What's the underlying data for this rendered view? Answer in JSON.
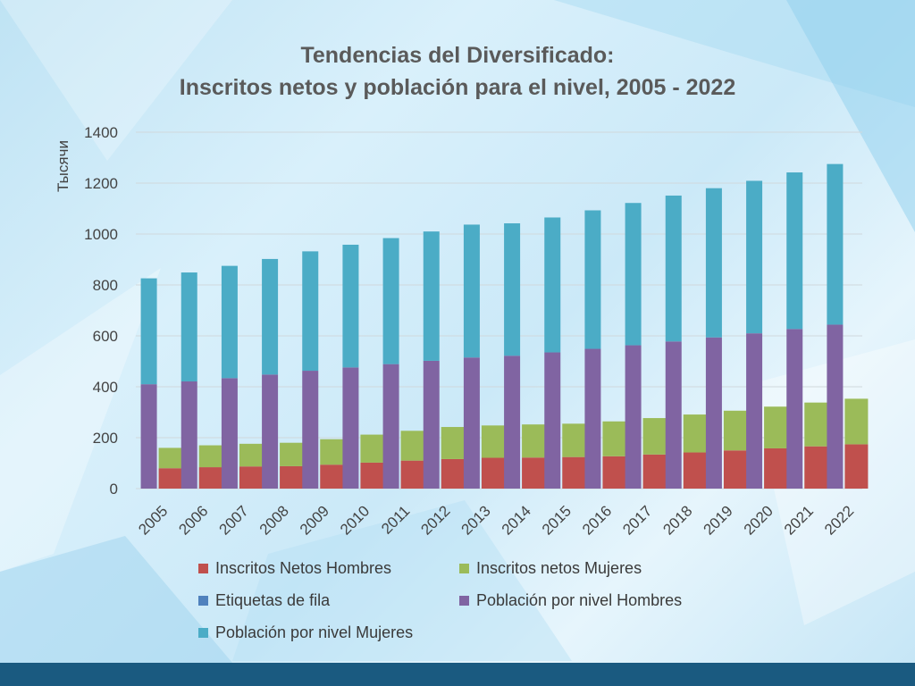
{
  "chart_data": {
    "type": "bar",
    "stacked": true,
    "title_lines": [
      "Tendencias del Diversificado:",
      "Inscritos netos y población para el nivel, 2005 - 2022"
    ],
    "ylabel": "Тысячи",
    "ylim": [
      0,
      1400
    ],
    "yticks": [
      0,
      200,
      400,
      600,
      800,
      1000,
      1200,
      1400
    ],
    "grid": true,
    "legend_position": "bottom",
    "categories": [
      "2005",
      "2006",
      "2007",
      "2008",
      "2009",
      "2010",
      "2011",
      "2012",
      "2013",
      "2014",
      "2015",
      "2016",
      "2017",
      "2018",
      "2019",
      "2020",
      "2021",
      "2022"
    ],
    "stack_groups": [
      {
        "group": "enrolled",
        "series": [
          {
            "name": "Inscritos Netos Hombres",
            "color": "#c0504d",
            "values": [
              80,
              84,
              87,
              88,
              94,
              102,
              110,
              116,
              121,
              122,
              124,
              127,
              134,
              142,
              150,
              158,
              166,
              174
            ]
          },
          {
            "name": "Inscritos netos Mujeres",
            "color": "#9bbb59",
            "values": [
              80,
              86,
              89,
              92,
              100,
              110,
              117,
              126,
              127,
              130,
              131,
              137,
              143,
              149,
              156,
              164,
              172,
              179
            ]
          }
        ]
      },
      {
        "group": "population",
        "series": [
          {
            "name": "Población por nivel Hombres",
            "color": "#8064a2",
            "values": [
              410,
              421,
              434,
              448,
              463,
              476,
              489,
              502,
              515,
              522,
              535,
              549,
              563,
              578,
              594,
              610,
              627,
              644
            ]
          },
          {
            "name": "Población por nivel Mujeres",
            "color": "#4bacc6",
            "values": [
              416,
              428,
              441,
              454,
              469,
              482,
              495,
              508,
              522,
              520,
              530,
              544,
              559,
              573,
              586,
              599,
              615,
              631
            ]
          }
        ]
      }
    ],
    "legend": [
      {
        "name": "Inscritos Netos Hombres",
        "color": "#c0504d"
      },
      {
        "name": "Inscritos netos Mujeres",
        "color": "#9bbb59"
      },
      {
        "name": "Etiquetas de fila",
        "color": "#4f81bd"
      },
      {
        "name": "Población por nivel Hombres",
        "color": "#8064a2"
      },
      {
        "name": "Población por nivel Mujeres",
        "color": "#4bacc6"
      }
    ]
  },
  "colors": {
    "footer": "#1a5a80",
    "title": "#5a5a5a",
    "gridline": "#d0d8dc"
  }
}
